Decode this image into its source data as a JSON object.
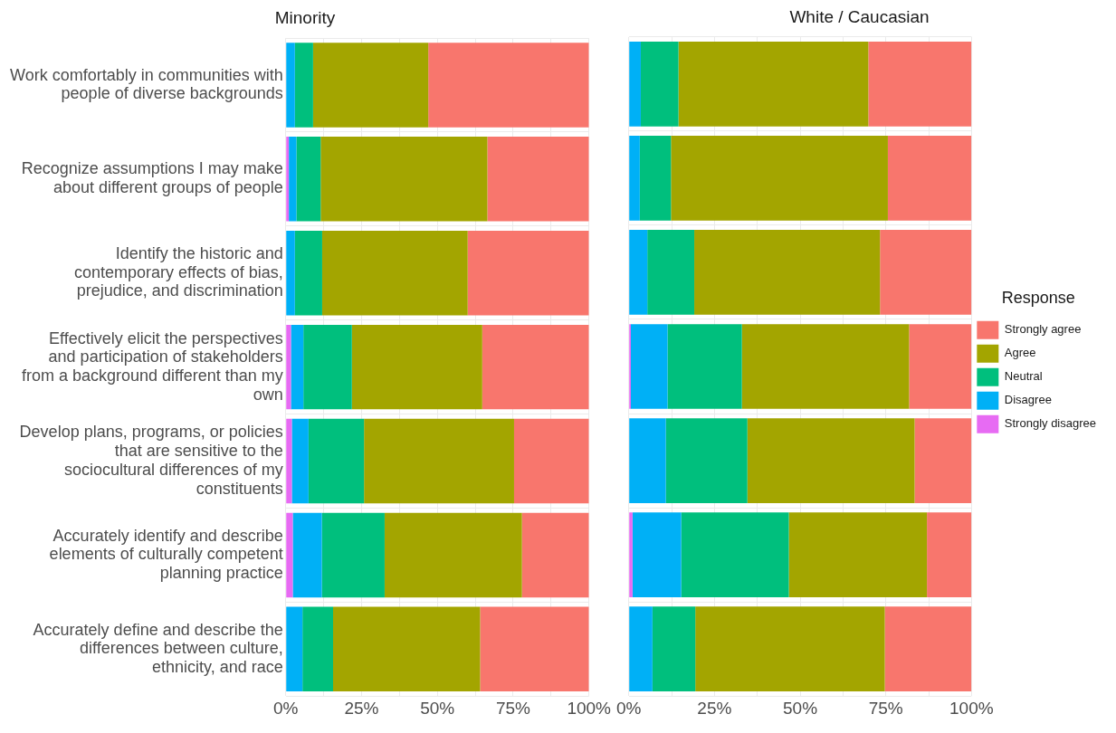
{
  "chart_data": [
    {
      "type": "bar",
      "title": "Minority",
      "orientation": "horizontal",
      "stacked": true,
      "grid": true,
      "legend": false,
      "categories": [
        "Work comfortably in communities with people of diverse backgrounds",
        "Recognize assumptions I may make about different groups of people",
        "Identify the historic and contemporary effects of bias, prejudice, and discrimination",
        "Effectively elicit the perspectives and participation of stakeholders from a background different than my own",
        "Develop plans, programs, or policies that are sensitive to the sociocultural differences of my constituents",
        "Accurately identify and describe elements of culturally competent planning practice",
        "Accurately define and describe the differences between culture, ethnicity, and race"
      ],
      "xlim": [
        0,
        100
      ],
      "xticks": [
        {
          "value": 0,
          "label": "0%"
        },
        {
          "value": 12.5,
          "label": null
        },
        {
          "value": 25,
          "label": "25%"
        },
        {
          "value": 37.5,
          "label": null
        },
        {
          "value": 50,
          "label": "50%"
        },
        {
          "value": 62.5,
          "label": null
        },
        {
          "value": 75,
          "label": "75%"
        },
        {
          "value": 87.5,
          "label": null
        },
        {
          "value": 100,
          "label": "100%"
        }
      ],
      "series": [
        {
          "color": "#e76bf3",
          "values": [
            0,
            1,
            0,
            1.7,
            2,
            2.3,
            0
          ]
        },
        {
          "color": "#00b0f6",
          "values": [
            3,
            2.5,
            3,
            4.1,
            5.5,
            9.6,
            5.5
          ]
        },
        {
          "color": "#00bf7d",
          "values": [
            6,
            8,
            9,
            16,
            18.3,
            20.7,
            10.1
          ]
        },
        {
          "color": "#a3a500",
          "values": [
            38,
            55,
            48,
            43,
            49.5,
            45.3,
            48.5
          ]
        },
        {
          "color": "#f8766d",
          "values": [
            53,
            33.5,
            40,
            35.2,
            24.7,
            22.1,
            35.9
          ]
        }
      ]
    },
    {
      "type": "bar",
      "title": "White / Caucasian",
      "orientation": "horizontal",
      "stacked": true,
      "grid": true,
      "legend": "right",
      "legend_title": "Response",
      "tick_labels": "x",
      "categories": [
        null,
        null,
        null,
        null,
        null,
        null,
        null
      ],
      "xlim": [
        0,
        100
      ],
      "xticks": [
        {
          "value": 0,
          "label": "0%"
        },
        {
          "value": 12.5,
          "label": null
        },
        {
          "value": 25,
          "label": "25%"
        },
        {
          "value": 37.5,
          "label": null
        },
        {
          "value": 50,
          "label": "50%"
        },
        {
          "value": 62.5,
          "label": null
        },
        {
          "value": 75,
          "label": "75%"
        },
        {
          "value": 87.5,
          "label": null
        },
        {
          "value": 100,
          "label": "100%"
        }
      ],
      "series": [
        {
          "name": "Strongly disagree",
          "color": "#e76bf3",
          "values": [
            0,
            0,
            0,
            0.6,
            0,
            1.1,
            0
          ]
        },
        {
          "name": "Disagree",
          "color": "#00b0f6",
          "values": [
            3.5,
            3.2,
            5.4,
            10.7,
            10.8,
            14.2,
            6.9
          ]
        },
        {
          "name": "Neutral",
          "color": "#00bf7d",
          "values": [
            11,
            9.1,
            13.7,
            21.7,
            23.8,
            31.4,
            12.5
          ]
        },
        {
          "name": "Agree",
          "color": "#a3a500",
          "values": [
            55.4,
            63.3,
            54.2,
            48.8,
            48.8,
            40.3,
            55.3
          ]
        },
        {
          "name": "Strongly agree",
          "color": "#f8766d",
          "values": [
            30.1,
            24.4,
            26.7,
            18.2,
            16.6,
            13,
            25.3
          ]
        }
      ]
    }
  ]
}
